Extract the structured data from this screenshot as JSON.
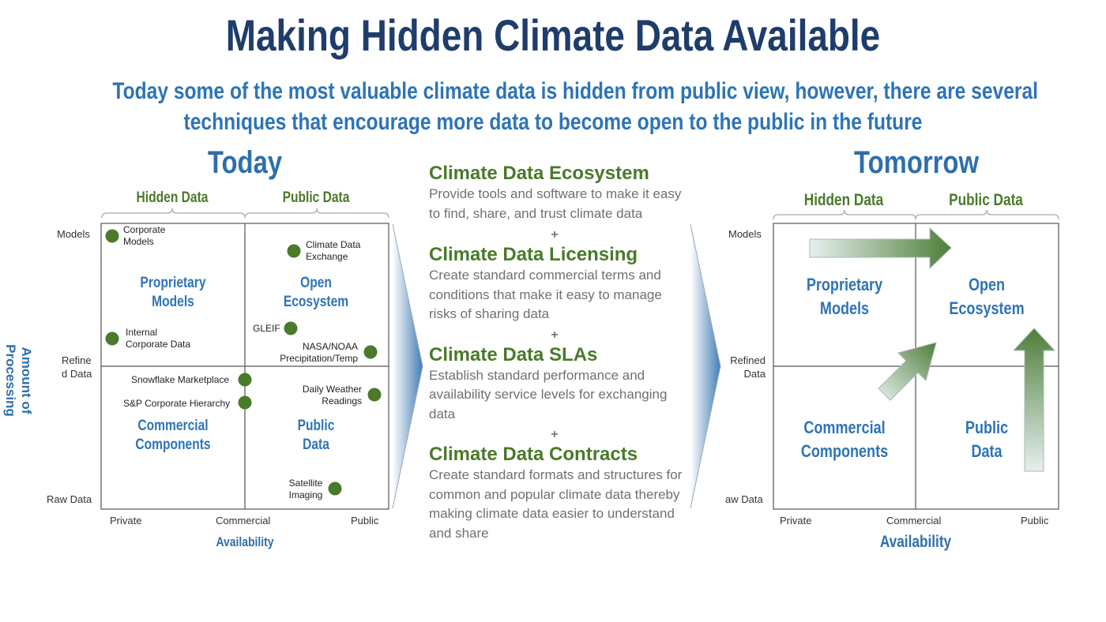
{
  "title": "Making Hidden Climate Data Available",
  "subtitle_line1": "Today some of the most valuable climate data is hidden from public view, however, there are several",
  "subtitle_line2": "techniques that encourage more data to become open to the public in the future",
  "today": {
    "heading": "Today",
    "bracket_hidden": "Hidden Data",
    "bracket_public": "Public Data",
    "y_axis_title": "Amount of Processing",
    "y_ticks": {
      "models": "Models",
      "refined_a": "Refine",
      "refined_b": "d Data",
      "raw": "Raw Data"
    },
    "x_ticks": {
      "private": "Private",
      "commercial": "Commercial",
      "public": "Public"
    },
    "x_axis_title": "Availability",
    "quadrants": {
      "tl_a": "Proprietary",
      "tl_b": "Models",
      "tr_a": "Open",
      "tr_b": "Ecosystem",
      "bl_a": "Commercial",
      "bl_b": "Components",
      "br_a": "Public",
      "br_b": "Data"
    },
    "points": {
      "corporate_models_a": "Corporate",
      "corporate_models_b": "Models",
      "internal_a": "Internal",
      "internal_b": "Corporate Data",
      "cde_a": "Climate Data",
      "cde_b": "Exchange",
      "gleif": "GLEIF",
      "nasa_a": "NASA/NOAA",
      "nasa_b": "Precipitation/Temp",
      "snowflake": "Snowflake Marketplace",
      "sp": "S&P Corporate Hierarchy",
      "weather_a": "Daily Weather",
      "weather_b": "Readings",
      "satellite_a": "Satellite",
      "satellite_b": "Imaging"
    },
    "point_color": "#4a7a2a"
  },
  "middle": {
    "items": [
      {
        "heading": "Climate Data Ecosystem",
        "body": "Provide tools and software to make it easy to find, share, and trust climate data"
      },
      {
        "heading": "Climate Data Licensing",
        "body": "Create standard commercial terms and conditions that make it easy to manage risks of sharing data"
      },
      {
        "heading": "Climate Data SLAs",
        "body": "Establish standard performance and availability service levels for exchanging data"
      },
      {
        "heading": "Climate Data Contracts",
        "body": "Create standard formats and structures for common and popular climate data thereby making climate data easier to understand and share"
      }
    ],
    "plus": "+"
  },
  "tomorrow": {
    "heading": "Tomorrow",
    "bracket_hidden": "Hidden Data",
    "bracket_public": "Public Data",
    "y_ticks": {
      "models": "Models",
      "refined_a": "Refined",
      "refined_b": "Data",
      "raw": "aw Data"
    },
    "x_ticks": {
      "private": "Private",
      "commercial": "Commercial",
      "public": "Public"
    },
    "x_axis_title": "Availability",
    "quadrants": {
      "tl_a": "Proprietary",
      "tl_b": "Models",
      "tr_a": "Open",
      "tr_b": "Ecosystem",
      "bl_a": "Commercial",
      "bl_b": "Components",
      "br_a": "Public",
      "br_b": "Data"
    }
  },
  "colors": {
    "title": "#1f3d6b",
    "accent": "#2e74b5",
    "green": "#4a7a2a",
    "arrow": "#4f7f3a"
  }
}
